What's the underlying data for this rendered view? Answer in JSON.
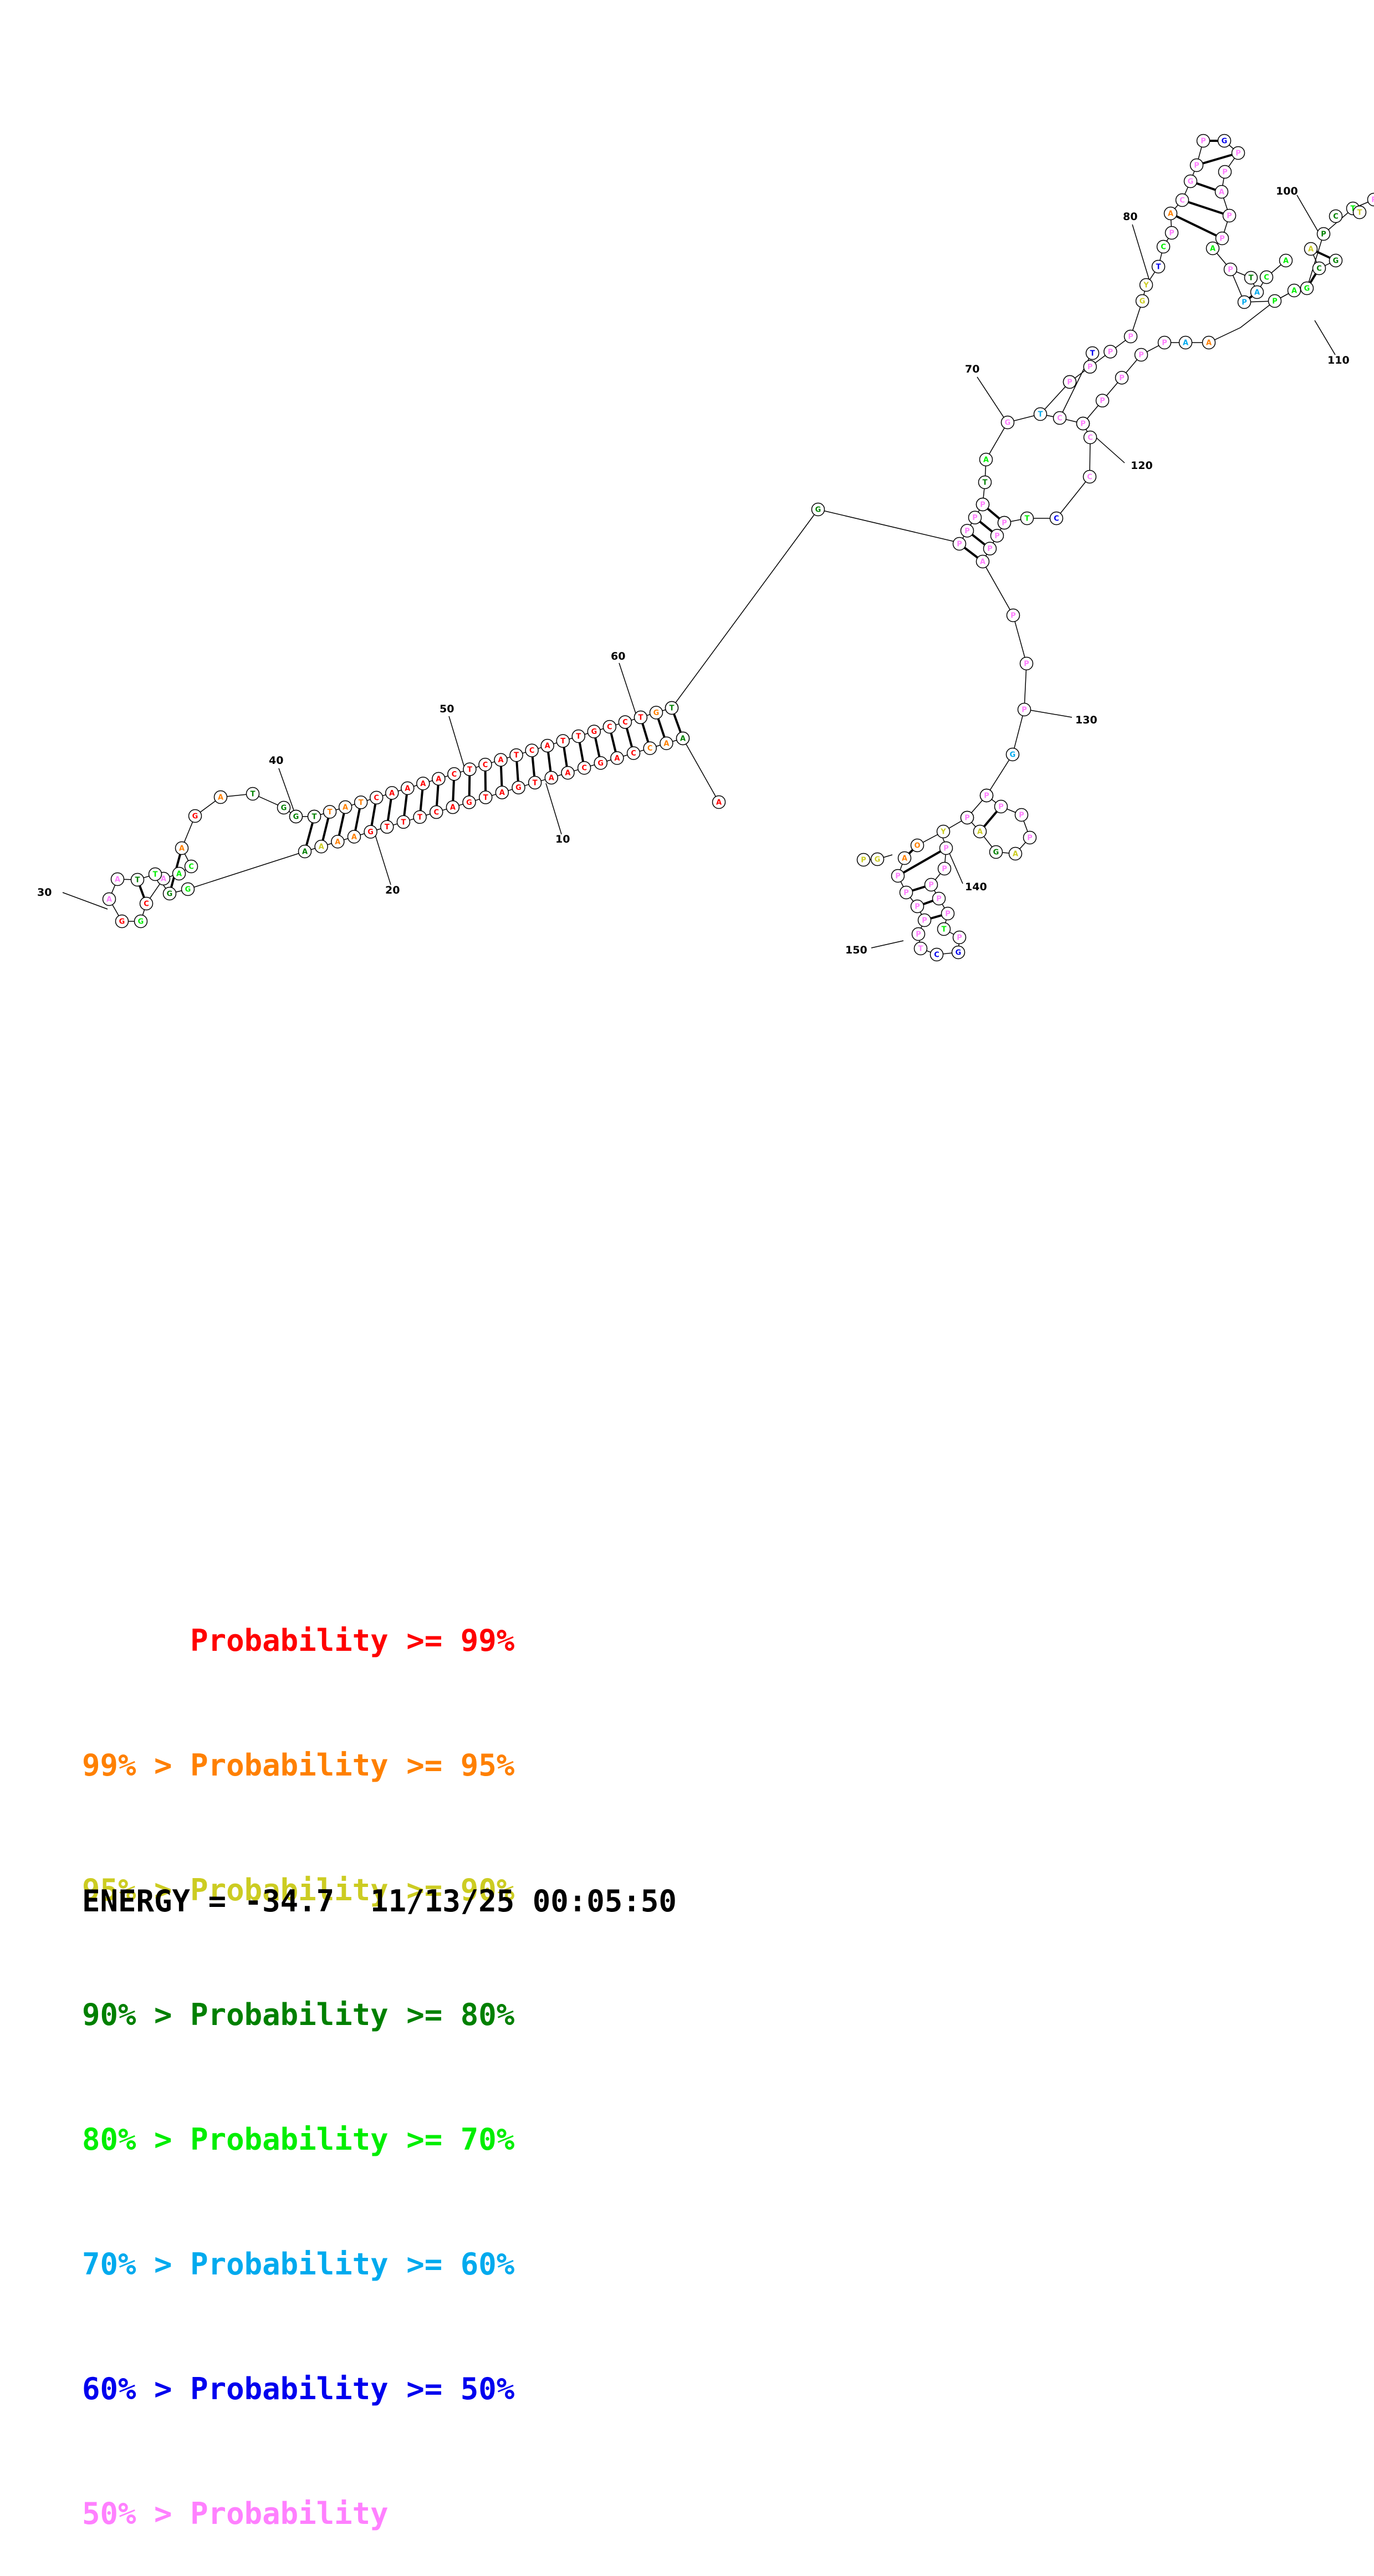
{
  "colors": {
    "p99": "#ff0000",
    "p95": "#ff8000",
    "p90": "#cccc22",
    "p80": "#008000",
    "p70": "#00ee00",
    "p60": "#00aaee",
    "p50": "#0000ee",
    "plow": "#ff80ff"
  },
  "position_labels": [
    "10",
    "20",
    "30",
    "40",
    "50",
    "60",
    "70",
    "80",
    "100",
    "110",
    "120",
    "130",
    "140",
    "150"
  ],
  "legend": {
    "rows": [
      {
        "prefix": "",
        "label": "Probability >= 99%",
        "color": "#ff0000"
      },
      {
        "prefix": "99% > ",
        "label": "Probability >= 95%",
        "color": "#ff8000"
      },
      {
        "prefix": "95% > ",
        "label": "Probability >= 90%",
        "color": "#cccc22"
      },
      {
        "prefix": "90% > ",
        "label": "Probability >= 80%",
        "color": "#008000"
      },
      {
        "prefix": "80% > ",
        "label": "Probability >= 70%",
        "color": "#00ee00"
      },
      {
        "prefix": "70% > ",
        "label": "Probability >= 60%",
        "color": "#00aaee"
      },
      {
        "prefix": "60% > ",
        "label": "Probability >= 50%",
        "color": "#0000ee"
      },
      {
        "prefix": "50% > ",
        "label": "Probability",
        "color": "#ff80ff"
      }
    ]
  },
  "energy": {
    "label": "ENERGY = -34.7  11/13/25 00:05:50"
  }
}
